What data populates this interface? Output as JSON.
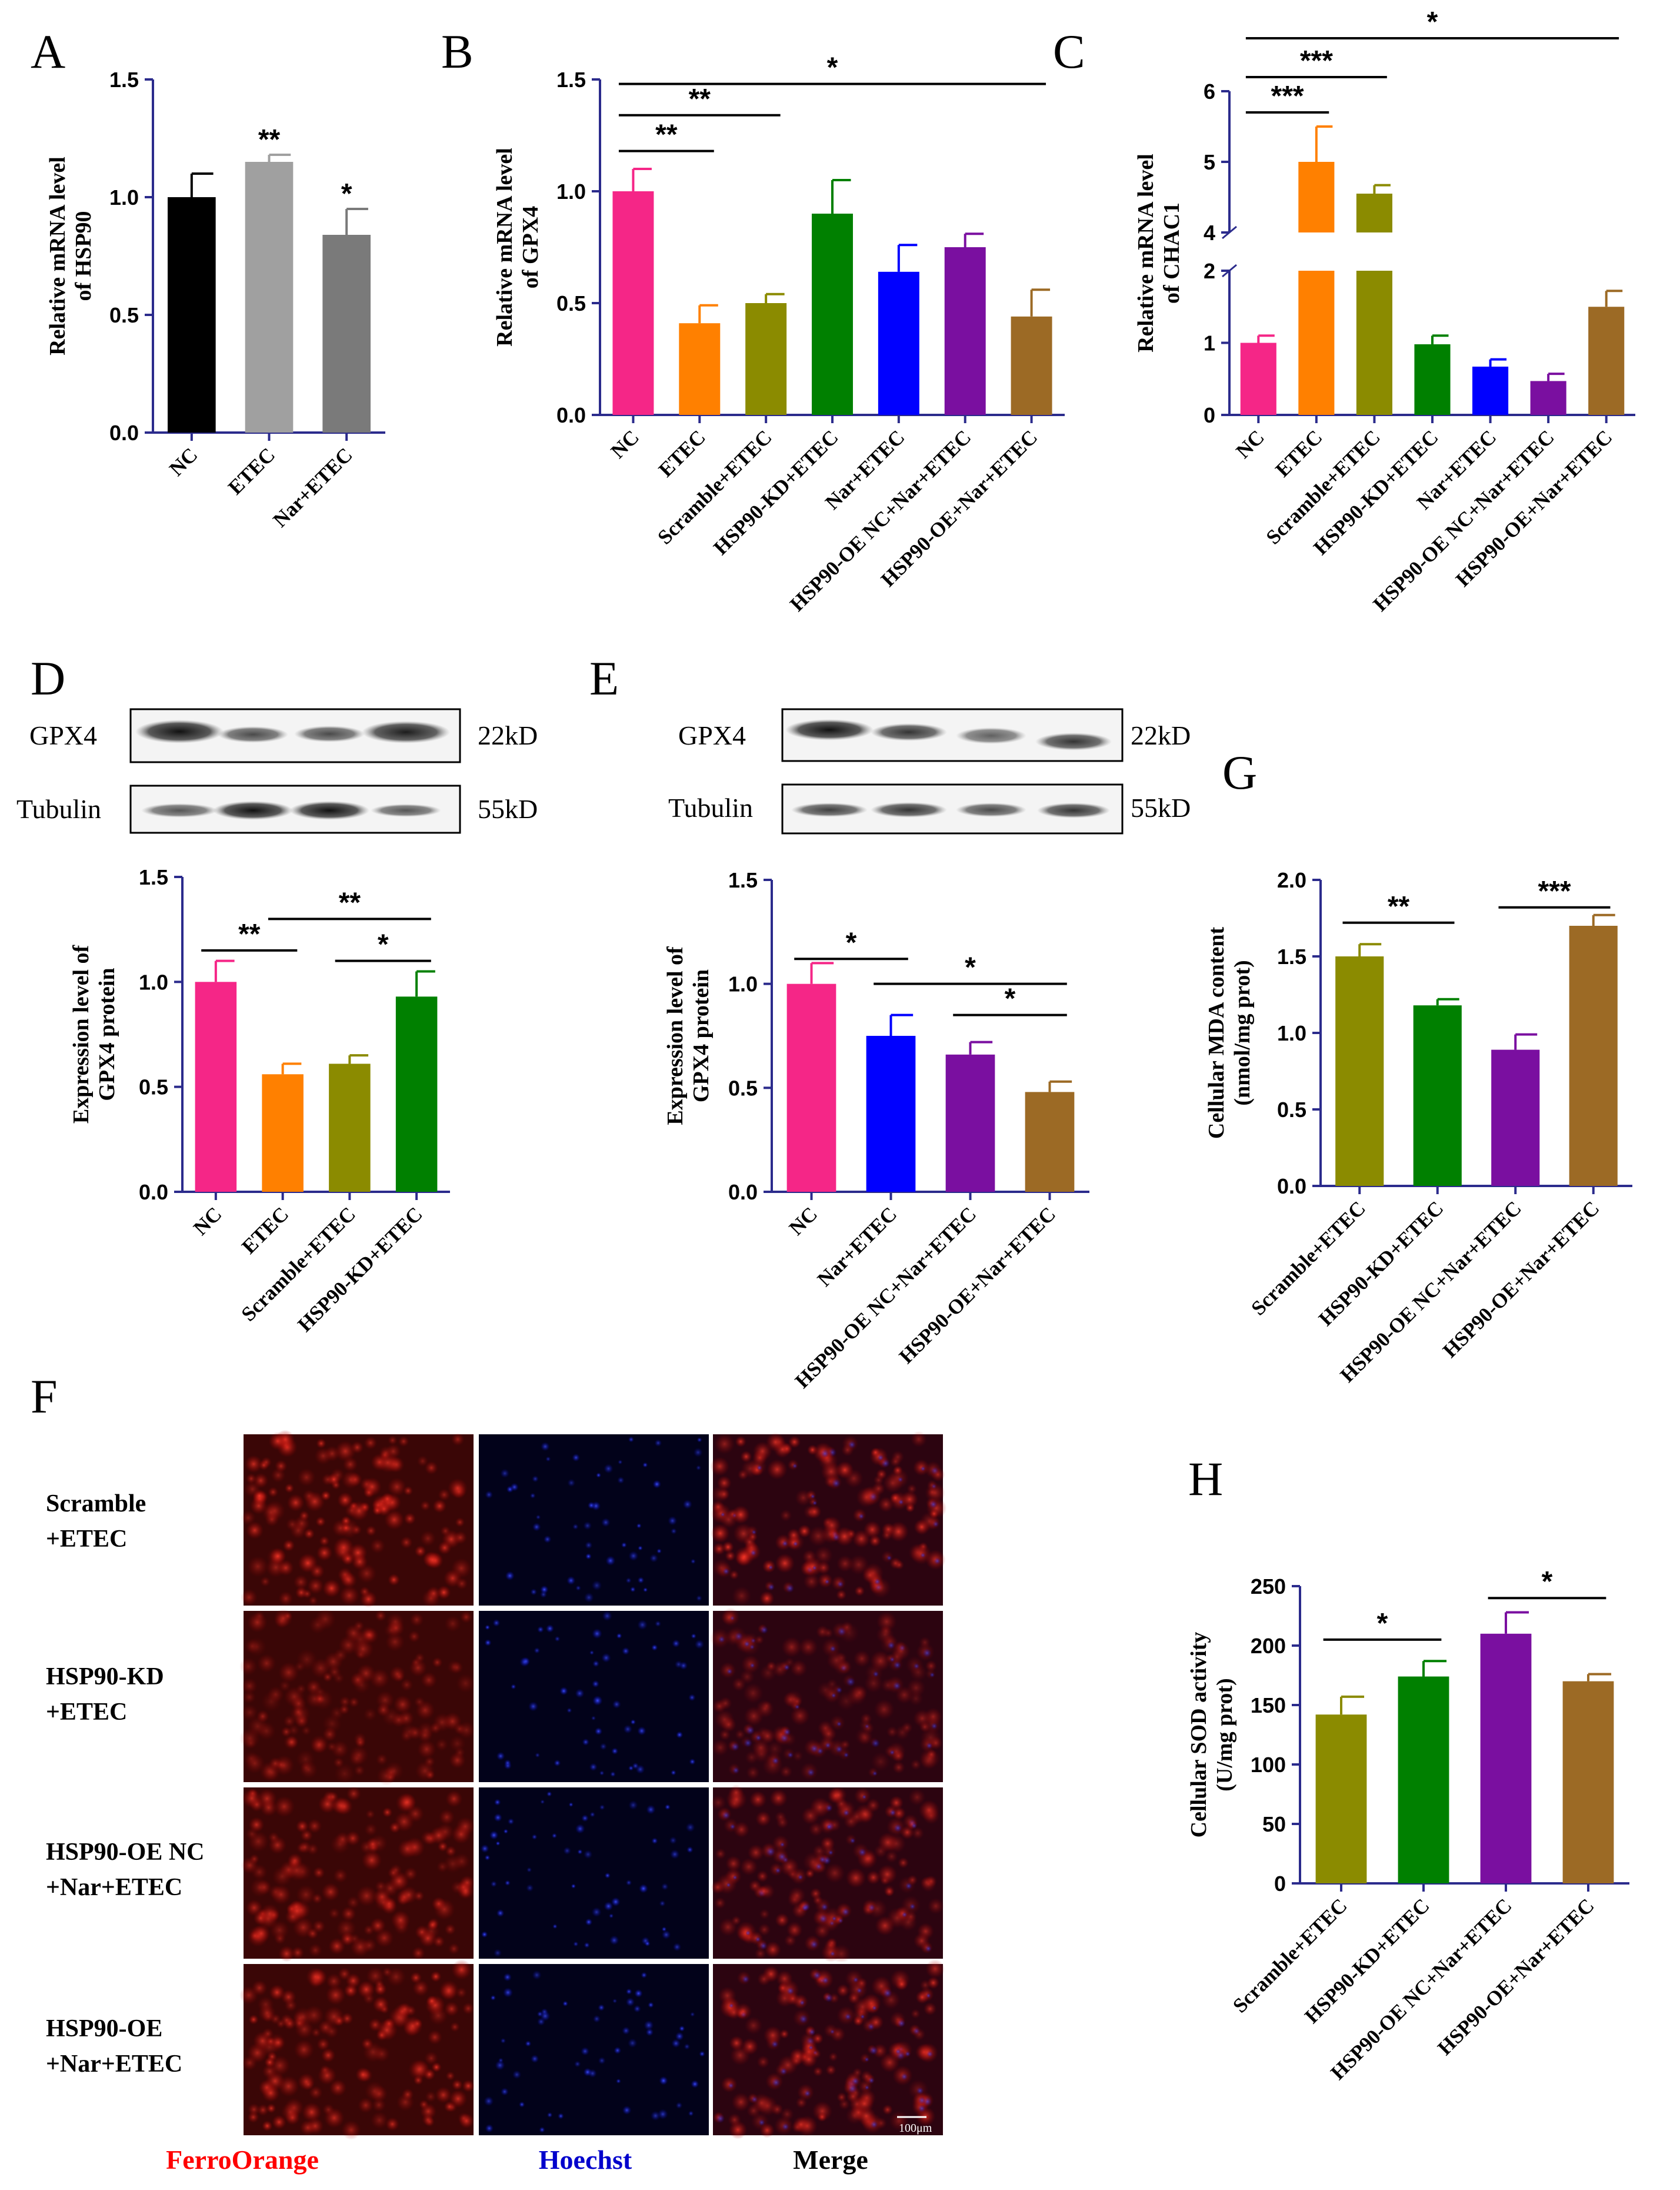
{
  "figure": {
    "panel_letters": [
      "A",
      "B",
      "C",
      "D",
      "E",
      "F",
      "G",
      "H"
    ],
    "colors": {
      "NC": "#f52687",
      "ETEC": "#ff8000",
      "Scramble+ETEC": "#8b8b00",
      "HSP90-KD+ETEC": "#008000",
      "Nar+ETEC": "#0000ff",
      "HSP90-OE NC+Nar+ETEC": "#7a0fa0",
      "HSP90-OE+Nar+ETEC": "#9c6a25",
      "axis": "#2b2b8c"
    }
  },
  "chart_data": [
    {
      "id": "A",
      "type": "bar",
      "ylabel": [
        "Relative mRNA level",
        "of HSP90"
      ],
      "categories": [
        "NC",
        "ETEC",
        "Nar+ETEC"
      ],
      "values": [
        1.0,
        1.15,
        0.84
      ],
      "errors": [
        0.1,
        0.03,
        0.11
      ],
      "colors": [
        "#000000",
        "#a0a0a0",
        "#7a7a7a"
      ],
      "ylim": [
        0,
        1.5
      ],
      "yticks": [
        "0.0",
        "0.5",
        "1.0",
        "1.5"
      ],
      "bar_stars": [
        "",
        "**",
        "*"
      ],
      "brackets": []
    },
    {
      "id": "B",
      "type": "bar",
      "ylabel": [
        "Relative mRNA level",
        "of GPX4"
      ],
      "categories": [
        "NC",
        "ETEC",
        "Scramble+ETEC",
        "HSP90-KD+ETEC",
        "Nar+ETEC",
        "HSP90-OE NC+Nar+ETEC",
        "HSP90-OE+Nar+ETEC"
      ],
      "values": [
        1.0,
        0.41,
        0.5,
        0.9,
        0.64,
        0.75,
        0.44
      ],
      "errors": [
        0.1,
        0.08,
        0.04,
        0.15,
        0.12,
        0.06,
        0.12
      ],
      "colors": [
        "#f52687",
        "#ff8000",
        "#8b8b00",
        "#008000",
        "#0000ff",
        "#7a0fa0",
        "#9c6a25"
      ],
      "ylim": [
        0,
        1.5
      ],
      "yticks": [
        "0.0",
        "0.5",
        "1.0",
        "1.5"
      ],
      "bar_stars": [],
      "brackets": [
        {
          "from": 0,
          "to": 1,
          "level": 1.18,
          "label": "**"
        },
        {
          "from": 0,
          "to": 2,
          "level": 1.34,
          "label": "**"
        },
        {
          "from": 0,
          "to": 6,
          "level": 1.48,
          "label": "*"
        }
      ]
    },
    {
      "id": "C",
      "type": "bar",
      "ylabel": [
        "Relative mRNA level",
        "of CHAC1"
      ],
      "categories": [
        "NC",
        "ETEC",
        "Scramble+ETEC",
        "HSP90-KD+ETEC",
        "Nar+ETEC",
        "HSP90-OE NC+Nar+ETEC",
        "HSP90-OE+Nar+ETEC"
      ],
      "values": [
        1.0,
        5.0,
        4.55,
        0.98,
        0.67,
        0.47,
        1.5
      ],
      "errors": [
        0.1,
        0.5,
        0.12,
        0.12,
        0.1,
        0.1,
        0.22
      ],
      "colors": [
        "#f52687",
        "#ff8000",
        "#8b8b00",
        "#008000",
        "#0000ff",
        "#7a0fa0",
        "#9c6a25"
      ],
      "axis_break": {
        "lower": [
          0,
          2
        ],
        "upper": [
          4,
          6
        ]
      },
      "yticks_lower": [
        "0",
        "1",
        "2"
      ],
      "yticks_upper": [
        "4",
        "5",
        "6"
      ],
      "bar_stars": [],
      "brackets": [
        {
          "from": 0,
          "to": 1,
          "level": 5.7,
          "label": "***"
        },
        {
          "from": 0,
          "to": 2,
          "level": 6.2,
          "label": "***"
        },
        {
          "from": 0,
          "to": 6,
          "level": 6.75,
          "label": "*"
        }
      ]
    },
    {
      "id": "D",
      "type": "bar",
      "ylabel": [
        "Expression level of",
        "GPX4 protein"
      ],
      "categories": [
        "NC",
        "ETEC",
        "Scramble+ETEC",
        "HSP90-KD+ETEC"
      ],
      "values": [
        1.0,
        0.56,
        0.61,
        0.93
      ],
      "errors": [
        0.1,
        0.05,
        0.04,
        0.12
      ],
      "colors": [
        "#f52687",
        "#ff8000",
        "#8b8b00",
        "#008000"
      ],
      "ylim": [
        0,
        1.5
      ],
      "yticks": [
        "0.0",
        "0.5",
        "1.0",
        "1.5"
      ],
      "bar_stars": [],
      "brackets": [
        {
          "from": 0,
          "to": 1,
          "level": 1.15,
          "label": "**"
        },
        {
          "from": 1,
          "to": 3,
          "level": 1.3,
          "label": "**"
        },
        {
          "from": 2,
          "to": 3,
          "level": 1.1,
          "label": "*"
        }
      ]
    },
    {
      "id": "E",
      "type": "bar",
      "ylabel": [
        "Expression level of",
        "GPX4 protein"
      ],
      "categories": [
        "NC",
        "Nar+ETEC",
        "HSP90-OE NC+Nar+ETEC",
        "HSP90-OE+Nar+ETEC"
      ],
      "values": [
        1.0,
        0.75,
        0.66,
        0.48
      ],
      "errors": [
        0.1,
        0.1,
        0.06,
        0.05
      ],
      "colors": [
        "#f52687",
        "#0000ff",
        "#7a0fa0",
        "#9c6a25"
      ],
      "ylim": [
        0,
        1.5
      ],
      "yticks": [
        "0.0",
        "0.5",
        "1.0",
        "1.5"
      ],
      "bar_stars": [],
      "brackets": [
        {
          "from": 0,
          "to": 1,
          "level": 1.12,
          "label": "*"
        },
        {
          "from": 1,
          "to": 3,
          "level": 1.0,
          "label": "*"
        },
        {
          "from": 2,
          "to": 3,
          "level": 0.85,
          "label": "*"
        }
      ]
    },
    {
      "id": "G",
      "type": "bar",
      "ylabel": [
        "Cellular MDA content",
        "(nmol/mg prot)"
      ],
      "categories": [
        "Scramble+ETEC",
        "HSP90-KD+ETEC",
        "HSP90-OE NC+Nar+ETEC",
        "HSP90-OE+Nar+ETEC"
      ],
      "values": [
        1.5,
        1.18,
        0.89,
        1.7
      ],
      "errors": [
        0.08,
        0.04,
        0.1,
        0.07
      ],
      "colors": [
        "#8b8b00",
        "#008000",
        "#7a0fa0",
        "#9c6a25"
      ],
      "ylim": [
        0,
        2.0
      ],
      "yticks": [
        "0.0",
        "0.5",
        "1.0",
        "1.5",
        "2.0"
      ],
      "bar_stars": [],
      "brackets": [
        {
          "from": 0,
          "to": 1,
          "level": 1.72,
          "label": "**"
        },
        {
          "from": 2,
          "to": 3,
          "level": 1.82,
          "label": "***"
        }
      ]
    },
    {
      "id": "H",
      "type": "bar",
      "ylabel": [
        "Cellular SOD activity",
        "(U/mg prot)"
      ],
      "categories": [
        "Scramble+ETEC",
        "HSP90-KD+ETEC",
        "HSP90-OE NC+Nar+ETEC",
        "HSP90-OE+Nar+ETEC"
      ],
      "values": [
        142,
        174,
        210,
        170
      ],
      "errors": [
        15,
        13,
        18,
        6
      ],
      "colors": [
        "#8b8b00",
        "#008000",
        "#7a0fa0",
        "#9c6a25"
      ],
      "ylim": [
        0,
        250
      ],
      "yticks": [
        "0",
        "50",
        "100",
        "150",
        "200",
        "250"
      ],
      "bar_stars": [],
      "brackets": [
        {
          "from": 0,
          "to": 1,
          "level": 205,
          "label": "*"
        },
        {
          "from": 2,
          "to": 3,
          "level": 240,
          "label": "*"
        }
      ]
    }
  ],
  "western_D": {
    "rows": [
      {
        "protein": "GPX4",
        "size": "22kD"
      },
      {
        "protein": "Tubulin",
        "size": "55kD"
      }
    ]
  },
  "western_E": {
    "rows": [
      {
        "protein": "GPX4",
        "size": "22kD"
      },
      {
        "protein": "Tubulin",
        "size": "55kD"
      }
    ]
  },
  "panel_F": {
    "rows": [
      [
        "Scramble",
        "+ETEC"
      ],
      [
        "HSP90-KD",
        "+ETEC"
      ],
      [
        "HSP90-OE NC",
        "+Nar+ETEC"
      ],
      [
        "HSP90-OE",
        "+Nar+ETEC"
      ]
    ],
    "channels": [
      "FerroOrange",
      "Hoechst",
      "Merge"
    ],
    "channel_colors": [
      "#ff0000",
      "#0000cc",
      "#000000"
    ],
    "scale_bar": "100μm"
  }
}
